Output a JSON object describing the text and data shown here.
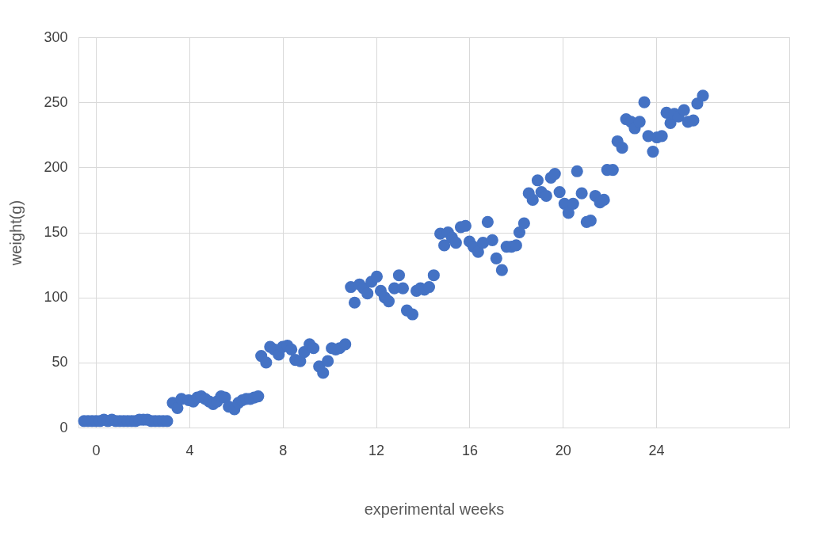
{
  "chart_data": {
    "type": "scatter",
    "xlabel": "experimental weeks",
    "ylabel": "weight(g)",
    "xlim": [
      -0.75,
      29.7
    ],
    "xticks": [
      0,
      4,
      8,
      12,
      16,
      20,
      24
    ],
    "ylim": [
      0,
      300
    ],
    "yticks": [
      0,
      50,
      100,
      150,
      200,
      250,
      300
    ],
    "grid": true,
    "marker": "circle",
    "legend": false,
    "series": [
      {
        "color": "#4472c4",
        "x": [
          -0.51,
          -0.34,
          -0.17,
          0,
          0.17,
          0.34,
          0.51,
          0.68,
          0.85,
          1.02,
          1.19,
          1.36,
          1.53,
          1.69,
          1.86,
          2.03,
          2.2,
          2.37,
          2.54,
          2.71,
          2.88,
          3.05,
          3.29,
          3.49,
          3.66,
          3.97,
          4.17,
          4.34,
          4.51,
          4.68,
          4.85,
          5.02,
          5.19,
          5.36,
          5.53,
          5.69,
          5.93,
          6.1,
          6.27,
          6.44,
          6.61,
          6.78,
          6.95,
          7.08,
          7.29,
          7.46,
          7.63,
          7.83,
          8.0,
          8.2,
          8.37,
          8.54,
          8.75,
          8.92,
          9.15,
          9.32,
          9.56,
          9.73,
          9.93,
          10.1,
          10.27,
          10.44,
          10.68,
          10.92,
          11.08,
          11.29,
          11.46,
          11.63,
          11.8,
          12.03,
          12.2,
          12.37,
          12.54,
          12.78,
          12.98,
          13.15,
          13.32,
          13.56,
          13.73,
          13.9,
          14.07,
          14.27,
          14.47,
          14.75,
          14.92,
          15.08,
          15.25,
          15.42,
          15.63,
          15.83,
          16.0,
          16.17,
          16.37,
          16.58,
          16.78,
          16.98,
          17.15,
          17.39,
          17.59,
          17.8,
          18.0,
          18.14,
          18.34,
          18.54,
          18.71,
          18.92,
          19.08,
          19.29,
          19.49,
          19.66,
          19.86,
          20.07,
          20.24,
          20.44,
          20.61,
          20.81,
          21.02,
          21.19,
          21.39,
          21.59,
          21.76,
          21.9,
          22.14,
          22.34,
          22.54,
          22.71,
          22.92,
          23.08,
          23.29,
          23.49,
          23.66,
          23.86,
          24.03,
          24.24,
          24.44,
          24.61,
          24.78,
          24.95,
          25.19,
          25.36,
          25.59,
          25.76,
          26.0
        ],
        "values": [
          5,
          5,
          5,
          5,
          5,
          6,
          5,
          6,
          5,
          5,
          5,
          5,
          5,
          5,
          6,
          6,
          6,
          5,
          5,
          5,
          5,
          5,
          19,
          15,
          22,
          21,
          20,
          23,
          24,
          22,
          20,
          18,
          20,
          24,
          23,
          16,
          14,
          19,
          21,
          22,
          22,
          23,
          24,
          55,
          50,
          62,
          60,
          56,
          62,
          63,
          60,
          52,
          51,
          58,
          64,
          61,
          47,
          42,
          51,
          61,
          60,
          61,
          64,
          108,
          96,
          110,
          107,
          103,
          112,
          116,
          105,
          100,
          97,
          107,
          117,
          107,
          90,
          87,
          105,
          107,
          106,
          108,
          117,
          149,
          140,
          150,
          146,
          142,
          154,
          155,
          143,
          139,
          135,
          142,
          158,
          144,
          130,
          121,
          139,
          139,
          140,
          150,
          157,
          180,
          175,
          190,
          181,
          178,
          192,
          195,
          181,
          172,
          165,
          172,
          197,
          180,
          158,
          159,
          178,
          173,
          175,
          198,
          198,
          220,
          215,
          237,
          235,
          230,
          235,
          250,
          224,
          212,
          223,
          224,
          242,
          234,
          241,
          239,
          244,
          235,
          236,
          249,
          255
        ]
      }
    ]
  }
}
